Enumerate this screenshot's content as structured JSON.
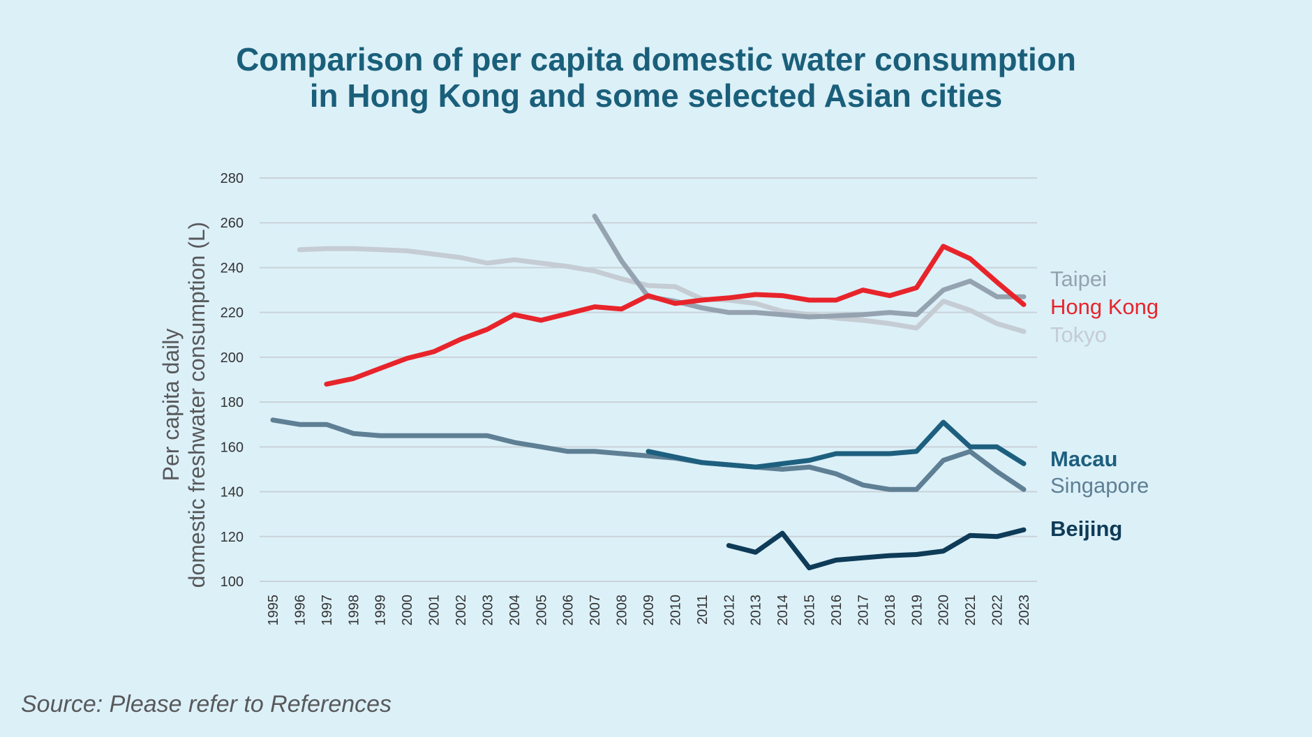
{
  "title_line1": "Comparison of per capita domestic water consumption",
  "title_line2": "in Hong Kong and some selected Asian cities",
  "source": "Source: Please refer to References",
  "chart_data": {
    "type": "line",
    "title": "Comparison of per capita domestic water consumption in Hong Kong and some selected Asian cities",
    "ylabel_line1": "Per capita daily",
    "ylabel_line2": "domestic freshwater consumption (L)",
    "xlabel": "",
    "ylim": [
      100,
      280
    ],
    "yticks": [
      100,
      120,
      140,
      160,
      180,
      200,
      220,
      240,
      260,
      280
    ],
    "grid": true,
    "legend": "direct labels at right end of lines",
    "x": [
      "1995",
      "1996",
      "1997",
      "1998",
      "1999",
      "2000",
      "2001",
      "2002",
      "2003",
      "2004",
      "2005",
      "2006",
      "2007",
      "2008",
      "2009",
      "2010",
      "2011",
      "2012",
      "2013",
      "2014",
      "2015",
      "2016",
      "2017",
      "2018",
      "2019",
      "2020",
      "2021",
      "2022",
      "2023"
    ],
    "series": [
      {
        "name": "Tokyo",
        "color": "#c5ccd3",
        "values": [
          null,
          248,
          248.5,
          248.5,
          248,
          247.5,
          246,
          244.5,
          242,
          243.5,
          242,
          240.5,
          238.5,
          235,
          232,
          231.5,
          226,
          225.5,
          224,
          220.5,
          219,
          217.5,
          216.5,
          215,
          213,
          225,
          221,
          215,
          211.5
        ]
      },
      {
        "name": "Singapore",
        "color": "#5e7f94",
        "values": [
          172,
          170,
          170,
          166,
          165,
          165,
          165,
          165,
          165,
          162,
          160,
          158,
          158,
          157,
          156,
          155,
          153,
          152,
          151,
          150,
          151,
          148,
          143,
          141,
          141,
          154,
          158,
          149,
          141
        ]
      },
      {
        "name": "Macau",
        "color": "#1d5f7e",
        "values": [
          null,
          null,
          null,
          null,
          null,
          null,
          null,
          null,
          null,
          null,
          null,
          null,
          null,
          null,
          158,
          155.5,
          153,
          152,
          151,
          152.5,
          154,
          157,
          157,
          157,
          158,
          171,
          160,
          160,
          152.5
        ]
      },
      {
        "name": "Taipei",
        "color": "#95a3b1",
        "values": [
          null,
          null,
          null,
          null,
          null,
          null,
          null,
          null,
          null,
          null,
          null,
          null,
          263,
          243,
          227,
          225,
          222,
          220,
          220,
          219,
          218,
          218.5,
          219,
          220,
          219,
          230,
          234,
          227,
          227
        ]
      },
      {
        "name": "Beijing",
        "color": "#0e3b57",
        "values": [
          null,
          null,
          null,
          null,
          null,
          null,
          null,
          null,
          null,
          null,
          null,
          null,
          null,
          null,
          null,
          null,
          null,
          116,
          113,
          121.5,
          106,
          109.5,
          110.5,
          111.5,
          112,
          113.5,
          120.5,
          120,
          123
        ]
      },
      {
        "name": "Hong Kong",
        "color": "#e8242b",
        "values": [
          null,
          null,
          188,
          190.5,
          195,
          199.5,
          202.5,
          208,
          212.5,
          219,
          216.5,
          219.5,
          222.5,
          221.5,
          227.5,
          224,
          225.5,
          226.5,
          228,
          227.5,
          225.5,
          225.5,
          230,
          227.5,
          231,
          249.5,
          244,
          233.5,
          223.5
        ]
      }
    ]
  }
}
